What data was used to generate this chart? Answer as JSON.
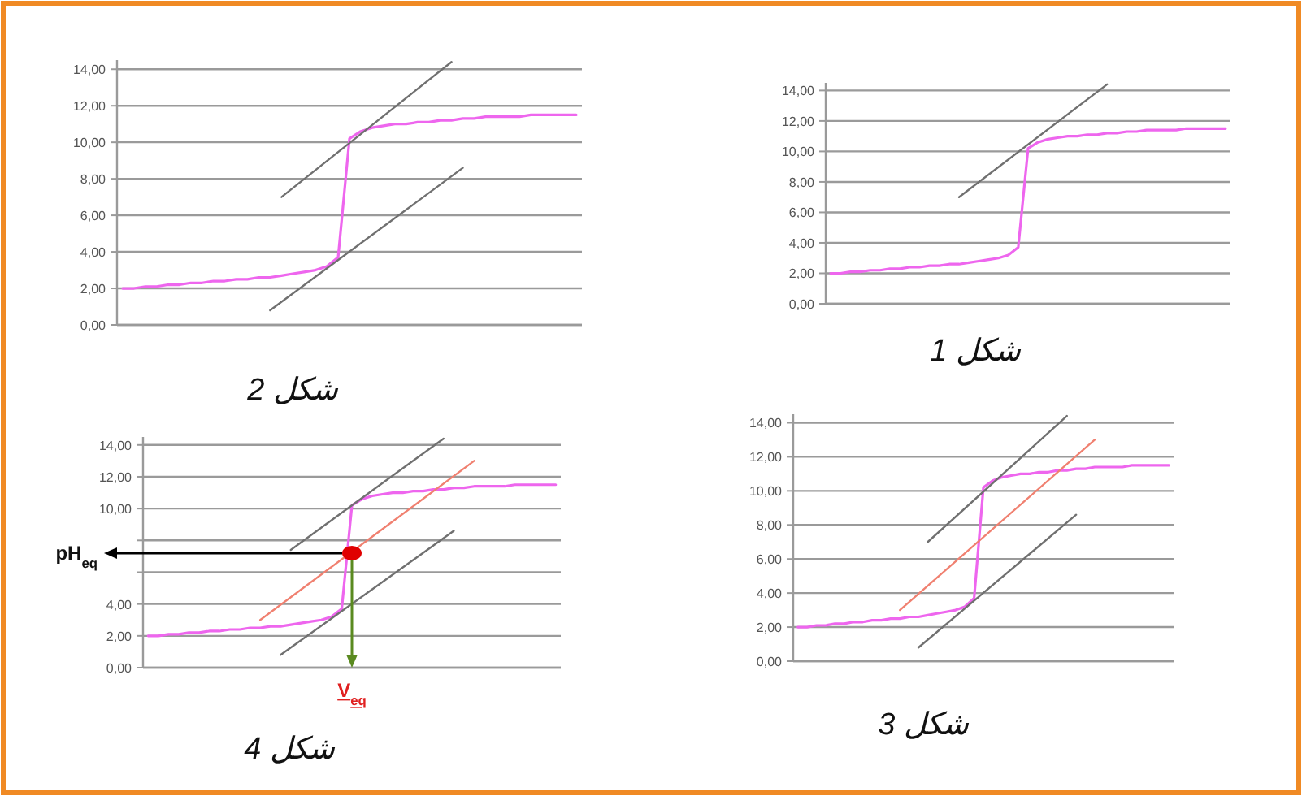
{
  "chart_data": [
    {
      "type": "line",
      "categories": [
        null,
        null,
        null,
        null,
        null,
        null,
        null,
        null,
        null,
        null,
        null,
        null,
        null,
        null,
        null,
        null,
        null,
        null,
        null,
        null,
        null,
        null,
        null,
        null,
        null,
        null,
        null,
        null,
        null,
        null,
        null,
        null,
        null,
        null,
        null,
        null,
        null,
        null,
        null,
        null,
        null
      ],
      "ylim": [
        0,
        14.5
      ],
      "yticks": [
        {
          "value": 0,
          "label": "0,00"
        },
        {
          "value": 2,
          "label": "2,00"
        },
        {
          "value": 4,
          "label": "4,00"
        },
        {
          "value": 6,
          "label": "6,00"
        },
        {
          "value": 8,
          "label": "8,00"
        },
        {
          "value": 10,
          "label": "10,00"
        },
        {
          "value": 12,
          "label": "12,00"
        },
        {
          "value": 14,
          "label": "14,00"
        }
      ],
      "grid": "y",
      "annotations": [
        "شكل 2"
      ],
      "series": [
        {
          "color": "#ee66ee",
          "values": [
            2.0,
            2.0,
            2.1,
            2.1,
            2.2,
            2.2,
            2.3,
            2.3,
            2.4,
            2.4,
            2.5,
            2.5,
            2.6,
            2.6,
            2.7,
            2.8,
            2.9,
            3.0,
            3.2,
            3.7,
            10.2,
            10.6,
            10.8,
            10.9,
            11.0,
            11.0,
            11.1,
            11.1,
            11.2,
            11.2,
            11.3,
            11.3,
            11.4,
            11.4,
            11.4,
            11.4,
            11.5,
            11.5,
            11.5,
            11.5,
            11.5
          ]
        },
        {
          "color": "#707070",
          "values": [
            null,
            null,
            null,
            null,
            null,
            null,
            null,
            null,
            null,
            null,
            null,
            null,
            null,
            null,
            7.0,
            null,
            null,
            null,
            null,
            null,
            null,
            null,
            null,
            null,
            null,
            null,
            null,
            null,
            null,
            14.4,
            null,
            null,
            null,
            null,
            null,
            null,
            null,
            null,
            null,
            null,
            null
          ]
        },
        {
          "color": "#707070",
          "values": [
            null,
            null,
            null,
            null,
            null,
            null,
            null,
            null,
            null,
            null,
            null,
            null,
            null,
            0.8,
            null,
            null,
            null,
            null,
            null,
            null,
            null,
            null,
            null,
            null,
            null,
            null,
            null,
            null,
            null,
            null,
            8.6,
            null,
            null,
            null,
            null,
            null,
            null,
            null,
            null,
            null,
            null
          ]
        }
      ]
    },
    {
      "type": "line",
      "categories": [
        null,
        null,
        null,
        null,
        null,
        null,
        null,
        null,
        null,
        null,
        null,
        null,
        null,
        null,
        null,
        null,
        null,
        null,
        null,
        null,
        null,
        null,
        null,
        null,
        null,
        null,
        null,
        null,
        null,
        null,
        null,
        null,
        null,
        null,
        null,
        null,
        null,
        null,
        null,
        null,
        null
      ],
      "ylim": [
        0,
        14.5
      ],
      "yticks": [
        {
          "value": 0,
          "label": "0,00"
        },
        {
          "value": 2,
          "label": "2,00"
        },
        {
          "value": 4,
          "label": "4,00"
        },
        {
          "value": 6,
          "label": "6,00"
        },
        {
          "value": 8,
          "label": "8,00"
        },
        {
          "value": 10,
          "label": "10,00"
        },
        {
          "value": 12,
          "label": "12,00"
        },
        {
          "value": 14,
          "label": "14,00"
        }
      ],
      "grid": "y",
      "annotations": [
        "شكل 1"
      ],
      "series": [
        {
          "color": "#ee66ee",
          "values": [
            2.0,
            2.0,
            2.1,
            2.1,
            2.2,
            2.2,
            2.3,
            2.3,
            2.4,
            2.4,
            2.5,
            2.5,
            2.6,
            2.6,
            2.7,
            2.8,
            2.9,
            3.0,
            3.2,
            3.7,
            10.2,
            10.6,
            10.8,
            10.9,
            11.0,
            11.0,
            11.1,
            11.1,
            11.2,
            11.2,
            11.3,
            11.3,
            11.4,
            11.4,
            11.4,
            11.4,
            11.5,
            11.5,
            11.5,
            11.5,
            11.5
          ]
        },
        {
          "color": "#707070",
          "values": [
            null,
            null,
            null,
            null,
            null,
            null,
            null,
            null,
            null,
            null,
            null,
            null,
            null,
            7.0,
            null,
            null,
            null,
            null,
            null,
            null,
            null,
            null,
            null,
            null,
            null,
            null,
            null,
            null,
            14.4,
            null,
            null,
            null,
            null,
            null,
            null,
            null,
            null,
            null,
            null,
            null,
            null
          ]
        }
      ]
    },
    {
      "type": "line",
      "categories": [
        null,
        null,
        null,
        null,
        null,
        null,
        null,
        null,
        null,
        null,
        null,
        null,
        null,
        null,
        null,
        null,
        null,
        null,
        null,
        null,
        null,
        null,
        null,
        null,
        null,
        null,
        null,
        null,
        null,
        null,
        null,
        null,
        null,
        null,
        null,
        null,
        null,
        null,
        null,
        null,
        null
      ],
      "ylim": [
        0,
        14.5
      ],
      "yticks": [
        {
          "value": 0,
          "label": "0,00"
        },
        {
          "value": 2,
          "label": "2,00"
        },
        {
          "value": 4,
          "label": "4,00"
        },
        {
          "value": 6,
          "label": null
        },
        {
          "value": 8,
          "label": null
        },
        {
          "value": 10,
          "label": "10,00"
        },
        {
          "value": 12,
          "label": "12,00"
        },
        {
          "value": 14,
          "label": "14,00"
        }
      ],
      "grid": "y",
      "annotations": [
        "شكل 4",
        "pH$_{eq}$",
        "V$_{eq}$"
      ],
      "series": [
        {
          "color": "#ee66ee",
          "values": [
            2.0,
            2.0,
            2.1,
            2.1,
            2.2,
            2.2,
            2.3,
            2.3,
            2.4,
            2.4,
            2.5,
            2.5,
            2.6,
            2.6,
            2.7,
            2.8,
            2.9,
            3.0,
            3.2,
            3.7,
            10.2,
            10.6,
            10.8,
            10.9,
            11.0,
            11.0,
            11.1,
            11.1,
            11.2,
            11.2,
            11.3,
            11.3,
            11.4,
            11.4,
            11.4,
            11.4,
            11.5,
            11.5,
            11.5,
            11.5,
            11.5
          ]
        },
        {
          "color": "#707070",
          "values": [
            null,
            null,
            null,
            null,
            null,
            null,
            null,
            null,
            null,
            null,
            null,
            null,
            null,
            null,
            7.4,
            null,
            null,
            null,
            null,
            null,
            null,
            null,
            null,
            null,
            null,
            null,
            null,
            null,
            null,
            14.4,
            null,
            null,
            null,
            null,
            null,
            null,
            null,
            null,
            null,
            null,
            null
          ]
        },
        {
          "color": "#707070",
          "values": [
            null,
            null,
            null,
            null,
            null,
            null,
            null,
            null,
            null,
            null,
            null,
            null,
            null,
            0.8,
            null,
            null,
            null,
            null,
            null,
            null,
            null,
            null,
            null,
            null,
            null,
            null,
            null,
            null,
            null,
            null,
            8.6,
            null,
            null,
            null,
            null,
            null,
            null,
            null,
            null,
            null,
            null
          ]
        },
        {
          "color": "#f08070",
          "values": [
            null,
            null,
            null,
            null,
            null,
            null,
            null,
            null,
            null,
            null,
            null,
            3.0,
            null,
            null,
            null,
            null,
            null,
            null,
            null,
            null,
            null,
            null,
            null,
            null,
            null,
            null,
            null,
            null,
            null,
            null,
            null,
            null,
            13.0,
            null,
            null,
            null,
            null,
            null,
            null,
            null,
            null
          ]
        },
        {
          "type": "scatter",
          "color": "#e00000",
          "values": [
            null,
            null,
            null,
            null,
            null,
            null,
            null,
            null,
            null,
            null,
            null,
            null,
            null,
            null,
            null,
            null,
            null,
            null,
            null,
            null,
            7.2,
            null,
            null,
            null,
            null,
            null,
            null,
            null,
            null,
            null,
            null,
            null,
            null,
            null,
            null,
            null,
            null,
            null,
            null,
            null,
            null
          ]
        }
      ]
    },
    {
      "type": "line",
      "categories": [
        null,
        null,
        null,
        null,
        null,
        null,
        null,
        null,
        null,
        null,
        null,
        null,
        null,
        null,
        null,
        null,
        null,
        null,
        null,
        null,
        null,
        null,
        null,
        null,
        null,
        null,
        null,
        null,
        null,
        null,
        null,
        null,
        null,
        null,
        null,
        null,
        null,
        null,
        null,
        null,
        null
      ],
      "ylim": [
        0,
        14.5
      ],
      "yticks": [
        {
          "value": 0,
          "label": "0,00"
        },
        {
          "value": 2,
          "label": "2,00"
        },
        {
          "value": 4,
          "label": "4,00"
        },
        {
          "value": 6,
          "label": "6,00"
        },
        {
          "value": 8,
          "label": "8,00"
        },
        {
          "value": 10,
          "label": "10,00"
        },
        {
          "value": 12,
          "label": "12,00"
        },
        {
          "value": 14,
          "label": "14,00"
        }
      ],
      "grid": "y",
      "annotations": [
        "شكل 3"
      ],
      "series": [
        {
          "color": "#ee66ee",
          "values": [
            2.0,
            2.0,
            2.1,
            2.1,
            2.2,
            2.2,
            2.3,
            2.3,
            2.4,
            2.4,
            2.5,
            2.5,
            2.6,
            2.6,
            2.7,
            2.8,
            2.9,
            3.0,
            3.2,
            3.7,
            10.2,
            10.6,
            10.8,
            10.9,
            11.0,
            11.0,
            11.1,
            11.1,
            11.2,
            11.2,
            11.3,
            11.3,
            11.4,
            11.4,
            11.4,
            11.4,
            11.5,
            11.5,
            11.5,
            11.5,
            11.5
          ]
        },
        {
          "color": "#707070",
          "values": [
            null,
            null,
            null,
            null,
            null,
            null,
            null,
            null,
            null,
            null,
            null,
            null,
            null,
            null,
            7.0,
            null,
            null,
            null,
            null,
            null,
            null,
            null,
            null,
            null,
            null,
            null,
            null,
            null,
            null,
            14.4,
            null,
            null,
            null,
            null,
            null,
            null,
            null,
            null,
            null,
            null,
            null
          ]
        },
        {
          "color": "#707070",
          "values": [
            null,
            null,
            null,
            null,
            null,
            null,
            null,
            null,
            null,
            null,
            null,
            null,
            null,
            0.8,
            null,
            null,
            null,
            null,
            null,
            null,
            null,
            null,
            null,
            null,
            null,
            null,
            null,
            null,
            null,
            null,
            8.6,
            null,
            null,
            null,
            null,
            null,
            null,
            null,
            null,
            null,
            null
          ]
        },
        {
          "color": "#f08070",
          "values": [
            null,
            null,
            null,
            null,
            null,
            null,
            null,
            null,
            null,
            null,
            null,
            3.0,
            null,
            null,
            null,
            null,
            null,
            null,
            null,
            null,
            null,
            null,
            null,
            null,
            null,
            null,
            null,
            null,
            null,
            null,
            null,
            null,
            13.0,
            null,
            null,
            null,
            null,
            null,
            null,
            null,
            null
          ]
        }
      ]
    }
  ]
}
